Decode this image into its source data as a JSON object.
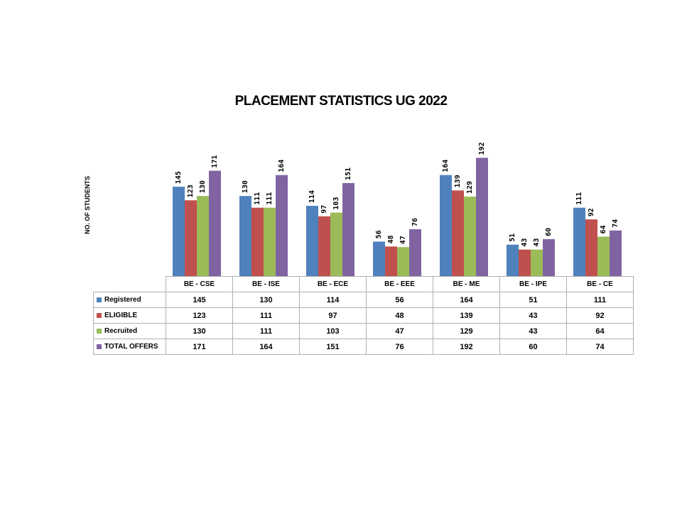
{
  "chart_data": {
    "type": "bar",
    "title": "PLACEMENT STATISTICS UG 2022",
    "ylabel": "NO. OF STUDENTS",
    "xlabel": "",
    "ylim": [
      0,
      200
    ],
    "grid": false,
    "legend": "table-below",
    "categories": [
      "BE - CSE",
      "BE - ISE",
      "BE - ECE",
      "BE - EEE",
      "BE - ME",
      "BE - IPE",
      "BE -  CE"
    ],
    "series": [
      {
        "name": "Registered",
        "color": "#4F81BD",
        "values": [
          145,
          130,
          114,
          56,
          164,
          51,
          111
        ]
      },
      {
        "name": "ELIGIBLE",
        "color": "#C0504D",
        "values": [
          123,
          111,
          97,
          48,
          139,
          43,
          92
        ]
      },
      {
        "name": "Recruited",
        "color": "#9BBB59",
        "values": [
          130,
          111,
          103,
          47,
          129,
          43,
          64
        ]
      },
      {
        "name": "TOTAL OFFERS",
        "color": "#8064A2",
        "values": [
          171,
          164,
          151,
          76,
          192,
          60,
          74
        ]
      }
    ]
  }
}
